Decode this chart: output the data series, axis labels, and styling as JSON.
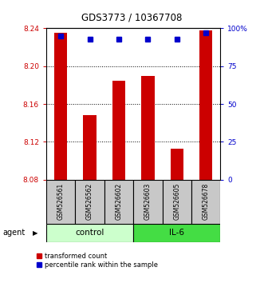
{
  "title": "GDS3773 / 10367708",
  "samples": [
    "GSM526561",
    "GSM526562",
    "GSM526602",
    "GSM526603",
    "GSM526605",
    "GSM526678"
  ],
  "bar_values": [
    8.235,
    8.148,
    8.185,
    8.19,
    8.113,
    8.238
  ],
  "percentile_values": [
    95,
    93,
    93,
    93,
    93,
    97
  ],
  "ylim_left": [
    8.08,
    8.24
  ],
  "ylim_right": [
    0,
    100
  ],
  "yticks_left": [
    8.08,
    8.12,
    8.16,
    8.2,
    8.24
  ],
  "yticks_right": [
    0,
    25,
    50,
    75,
    100
  ],
  "yticklabels_right": [
    "0",
    "25",
    "50",
    "75",
    "100%"
  ],
  "bar_color": "#cc0000",
  "dot_color": "#0000cc",
  "control_label": "control",
  "il6_label": "IL-6",
  "agent_label": "agent",
  "legend_bar_label": "transformed count",
  "legend_dot_label": "percentile rank within the sample",
  "control_color": "#ccffcc",
  "il6_color": "#44dd44",
  "left_axis_color": "#cc0000",
  "right_axis_color": "#0000cc",
  "background_color": "#ffffff",
  "title_fontsize": 8.5,
  "tick_fontsize": 6.5,
  "sample_fontsize": 5.5,
  "legend_fontsize": 6.0,
  "agent_fontsize": 7.0,
  "group_label_fontsize": 7.5
}
